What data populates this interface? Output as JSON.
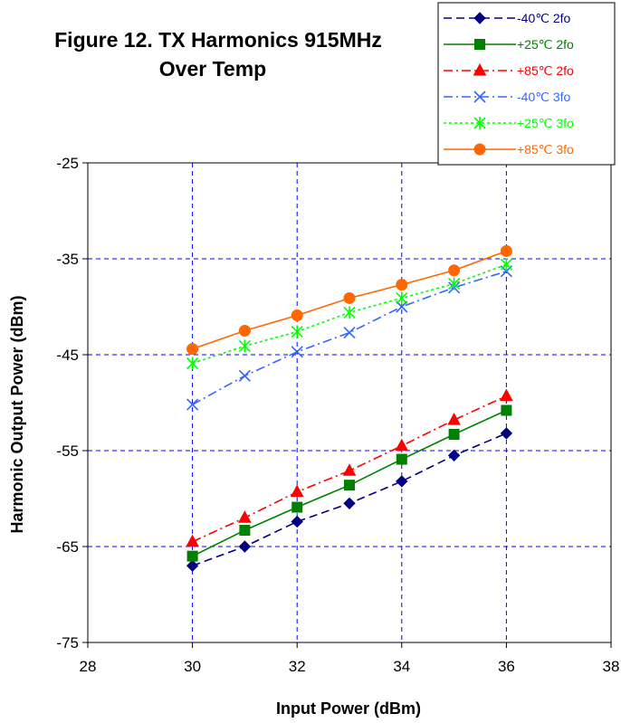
{
  "chart_data": {
    "type": "line",
    "title_line1": "Figure 12. TX Harmonics 915MHz",
    "title_line2": "Over Temp",
    "xlabel": "Input Power (dBm)",
    "ylabel": "Harmonic Output Power (dBm)",
    "xlim": [
      28,
      38
    ],
    "ylim": [
      -75,
      -25
    ],
    "xticks": [
      28,
      30,
      32,
      34,
      36,
      38
    ],
    "yticks": [
      -25,
      -35,
      -45,
      -55,
      -65,
      -75
    ],
    "grid": true,
    "legend_position": "top-right",
    "x": [
      30,
      31,
      32,
      33,
      34,
      35,
      36
    ],
    "series": [
      {
        "name": "-40℃ 2fo",
        "color": "#000080",
        "dash": "9,5",
        "marker": "diamond",
        "values": [
          -67.0,
          -65.0,
          -62.4,
          -60.5,
          -58.2,
          -55.5,
          -53.2
        ]
      },
      {
        "name": "+25℃ 2fo",
        "color": "#008000",
        "dash": "",
        "marker": "square",
        "values": [
          -66.0,
          -63.3,
          -60.9,
          -58.6,
          -55.9,
          -53.3,
          -50.8
        ]
      },
      {
        "name": "+85℃ 2fo",
        "color": "#ff0000",
        "dash": "10,4,2,4",
        "marker": "triangle",
        "values": [
          -64.5,
          -62.0,
          -59.3,
          -57.1,
          -54.5,
          -51.8,
          -49.3
        ]
      },
      {
        "name": "-40℃ 3fo",
        "color": "#3366ff",
        "dash": "10,4,2,4",
        "marker": "x",
        "values": [
          -50.2,
          -47.2,
          -44.7,
          -42.7,
          -40.0,
          -38.0,
          -36.3
        ]
      },
      {
        "name": "+25℃ 3fo",
        "color": "#00ff00",
        "dash": "3,3",
        "marker": "star",
        "values": [
          -45.9,
          -44.1,
          -42.6,
          -40.6,
          -39.1,
          -37.6,
          -35.6
        ]
      },
      {
        "name": "+85℃ 3fo",
        "color": "#ff6600",
        "dash": "",
        "marker": "circle",
        "values": [
          -44.4,
          -42.5,
          -40.9,
          -39.1,
          -37.7,
          -36.2,
          -34.2
        ]
      }
    ]
  }
}
